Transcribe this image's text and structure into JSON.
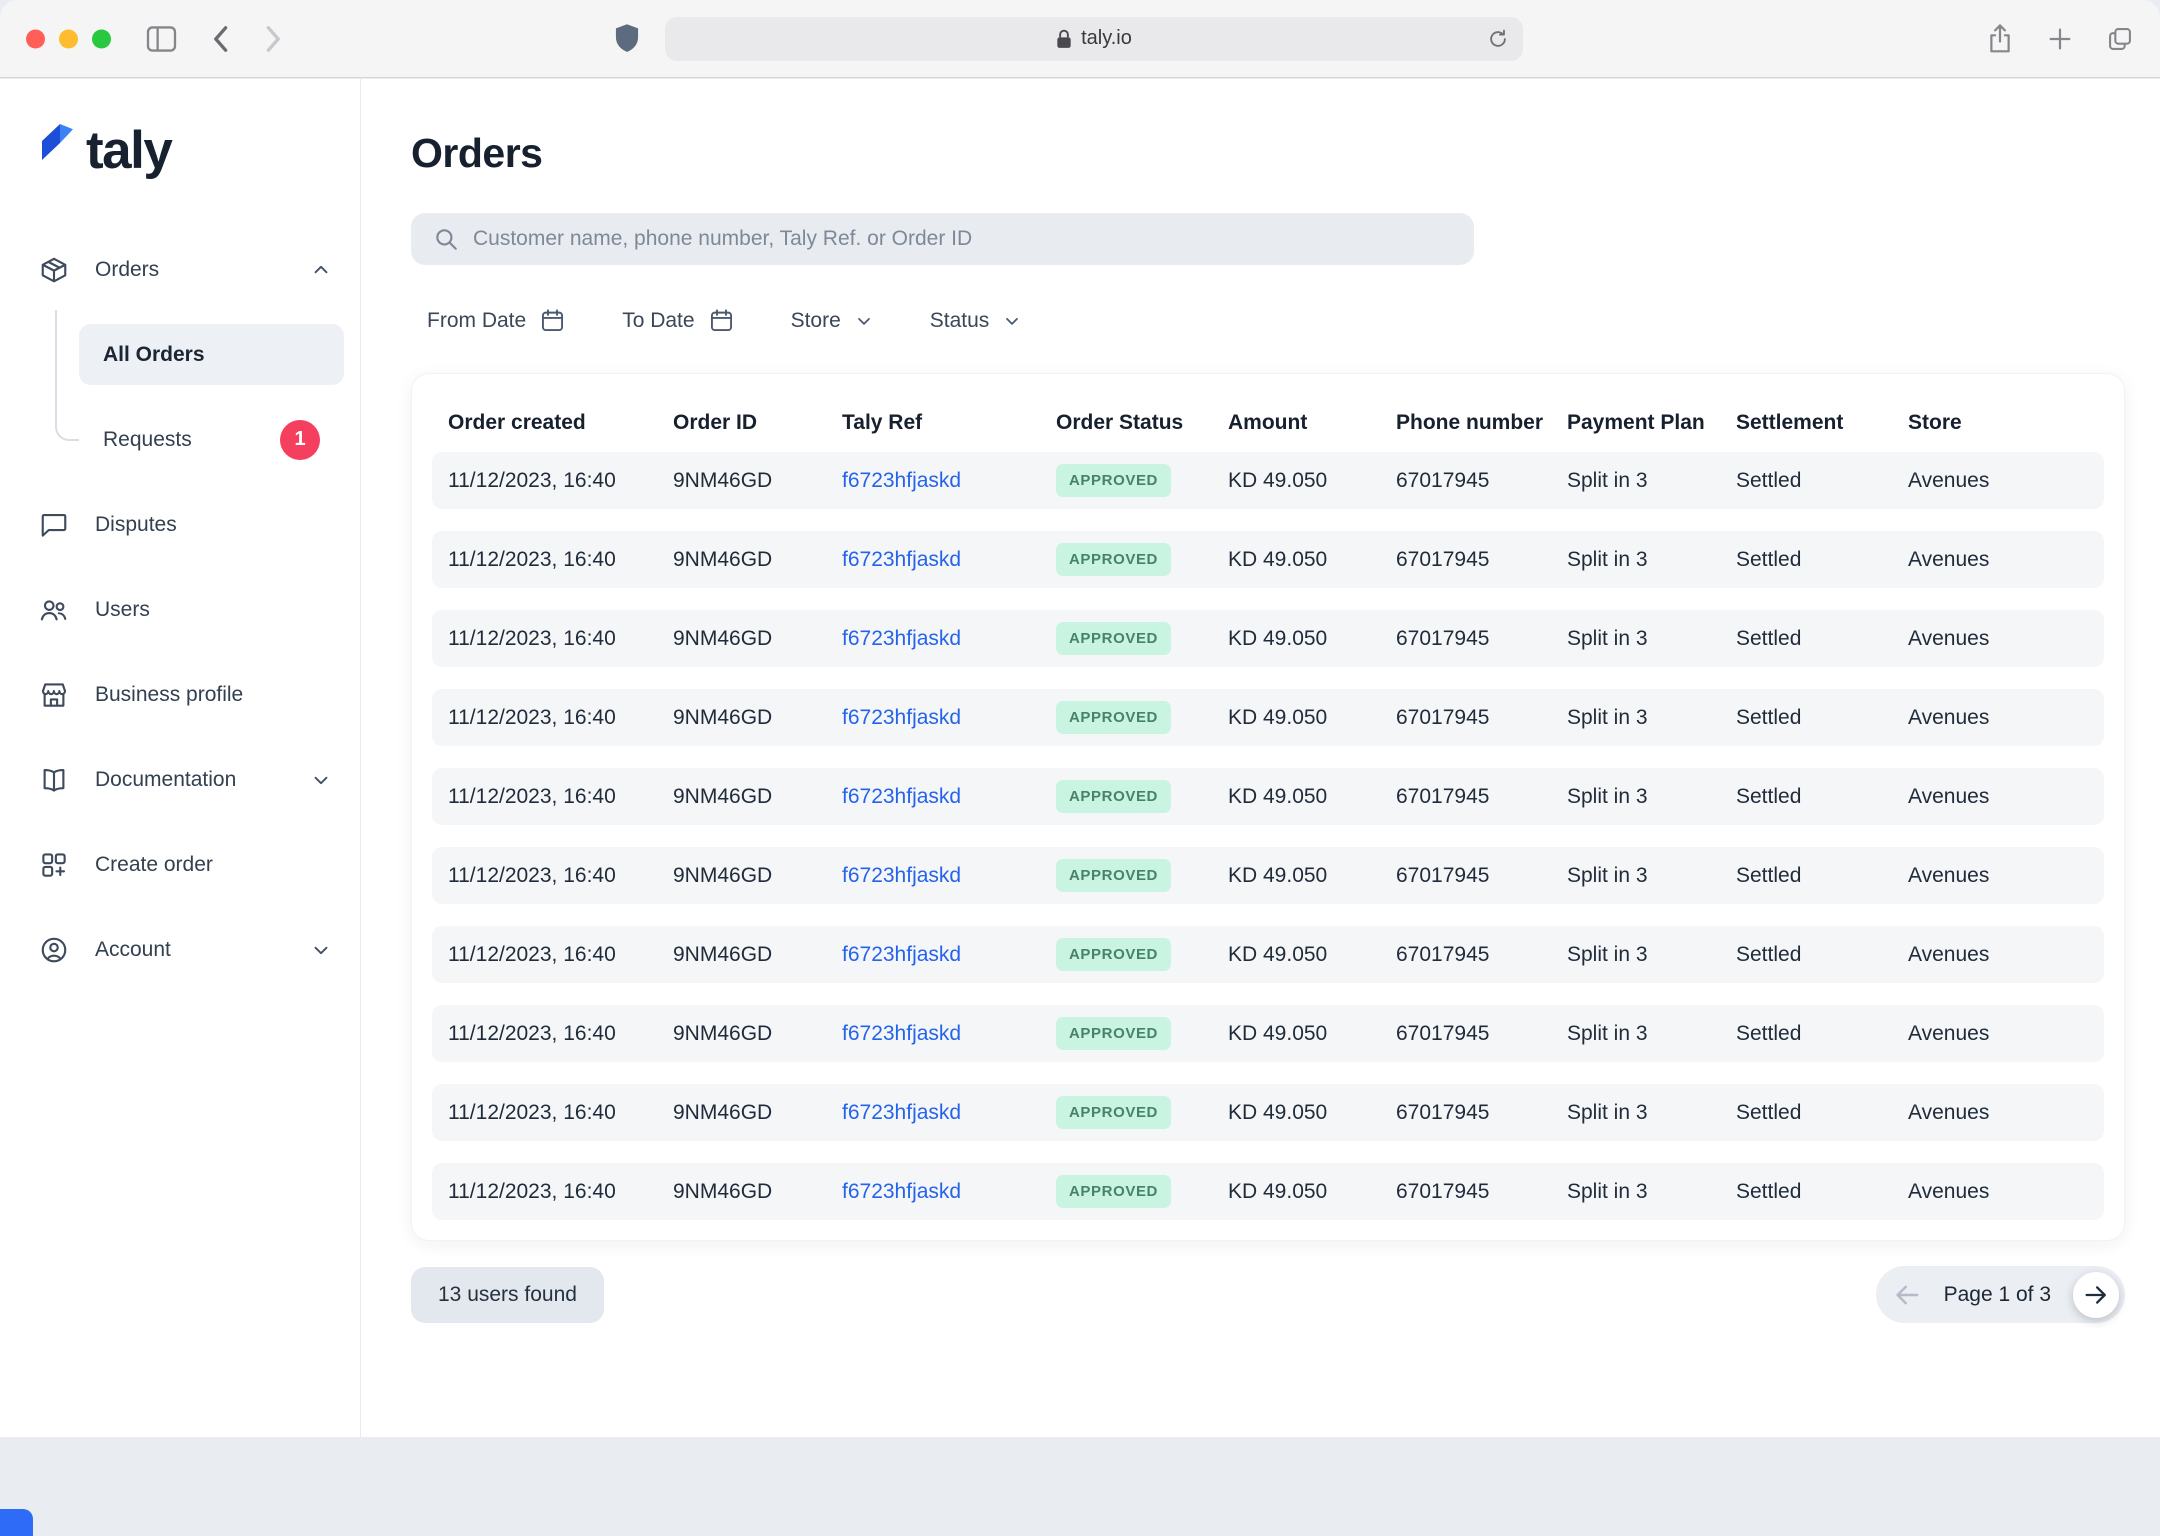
{
  "chrome": {
    "url": "taly.io"
  },
  "sidebar": {
    "logo": "taly",
    "items": {
      "orders": "Orders",
      "all_orders": "All Orders",
      "requests": "Requests",
      "requests_badge": "1",
      "disputes": "Disputes",
      "users": "Users",
      "business_profile": "Business profile",
      "documentation": "Documentation",
      "create_order": "Create order",
      "account": "Account"
    }
  },
  "main": {
    "title": "Orders",
    "search_placeholder": "Customer name, phone number, Taly Ref. or Order ID",
    "filters": {
      "from_date": "From Date",
      "to_date": "To Date",
      "store": "Store",
      "status": "Status"
    },
    "table": {
      "columns": [
        "Order created",
        "Order ID",
        "Taly Ref",
        "Order Status",
        "Amount",
        "Phone number",
        "Payment Plan",
        "Settlement",
        "Store"
      ],
      "rows": [
        {
          "order_created": "11/12/2023, 16:40",
          "order_id": "9NM46GD",
          "taly_ref": "f6723hfjaskd",
          "order_status": "APPROVED",
          "amount": "KD 49.050",
          "phone_number": "67017945",
          "payment_plan": "Split in 3",
          "settlement": "Settled",
          "store": "Avenues"
        },
        {
          "order_created": "11/12/2023, 16:40",
          "order_id": "9NM46GD",
          "taly_ref": "f6723hfjaskd",
          "order_status": "APPROVED",
          "amount": "KD 49.050",
          "phone_number": "67017945",
          "payment_plan": "Split in 3",
          "settlement": "Settled",
          "store": "Avenues"
        },
        {
          "order_created": "11/12/2023, 16:40",
          "order_id": "9NM46GD",
          "taly_ref": "f6723hfjaskd",
          "order_status": "APPROVED",
          "amount": "KD 49.050",
          "phone_number": "67017945",
          "payment_plan": "Split in 3",
          "settlement": "Settled",
          "store": "Avenues"
        },
        {
          "order_created": "11/12/2023, 16:40",
          "order_id": "9NM46GD",
          "taly_ref": "f6723hfjaskd",
          "order_status": "APPROVED",
          "amount": "KD 49.050",
          "phone_number": "67017945",
          "payment_plan": "Split in 3",
          "settlement": "Settled",
          "store": "Avenues"
        },
        {
          "order_created": "11/12/2023, 16:40",
          "order_id": "9NM46GD",
          "taly_ref": "f6723hfjaskd",
          "order_status": "APPROVED",
          "amount": "KD 49.050",
          "phone_number": "67017945",
          "payment_plan": "Split in 3",
          "settlement": "Settled",
          "store": "Avenues"
        },
        {
          "order_created": "11/12/2023, 16:40",
          "order_id": "9NM46GD",
          "taly_ref": "f6723hfjaskd",
          "order_status": "APPROVED",
          "amount": "KD 49.050",
          "phone_number": "67017945",
          "payment_plan": "Split in 3",
          "settlement": "Settled",
          "store": "Avenues"
        },
        {
          "order_created": "11/12/2023, 16:40",
          "order_id": "9NM46GD",
          "taly_ref": "f6723hfjaskd",
          "order_status": "APPROVED",
          "amount": "KD 49.050",
          "phone_number": "67017945",
          "payment_plan": "Split in 3",
          "settlement": "Settled",
          "store": "Avenues"
        },
        {
          "order_created": "11/12/2023, 16:40",
          "order_id": "9NM46GD",
          "taly_ref": "f6723hfjaskd",
          "order_status": "APPROVED",
          "amount": "KD 49.050",
          "phone_number": "67017945",
          "payment_plan": "Split in 3",
          "settlement": "Settled",
          "store": "Avenues"
        },
        {
          "order_created": "11/12/2023, 16:40",
          "order_id": "9NM46GD",
          "taly_ref": "f6723hfjaskd",
          "order_status": "APPROVED",
          "amount": "KD 49.050",
          "phone_number": "67017945",
          "payment_plan": "Split in 3",
          "settlement": "Settled",
          "store": "Avenues"
        },
        {
          "order_created": "11/12/2023, 16:40",
          "order_id": "9NM46GD",
          "taly_ref": "f6723hfjaskd",
          "order_status": "APPROVED",
          "amount": "KD 49.050",
          "phone_number": "67017945",
          "payment_plan": "Split in 3",
          "settlement": "Settled",
          "store": "Avenues"
        }
      ]
    },
    "footer": {
      "users_found": "13 users found",
      "page_label": "Page 1 of 3"
    }
  },
  "colors": {
    "accent_blue": "#2563eb",
    "approved_bg": "#c9f4e1",
    "approved_text": "#47836c",
    "requests_badge_bg": "#f43f5e",
    "page_background": "#e9edf2",
    "row_background": "#f5f6f8"
  }
}
